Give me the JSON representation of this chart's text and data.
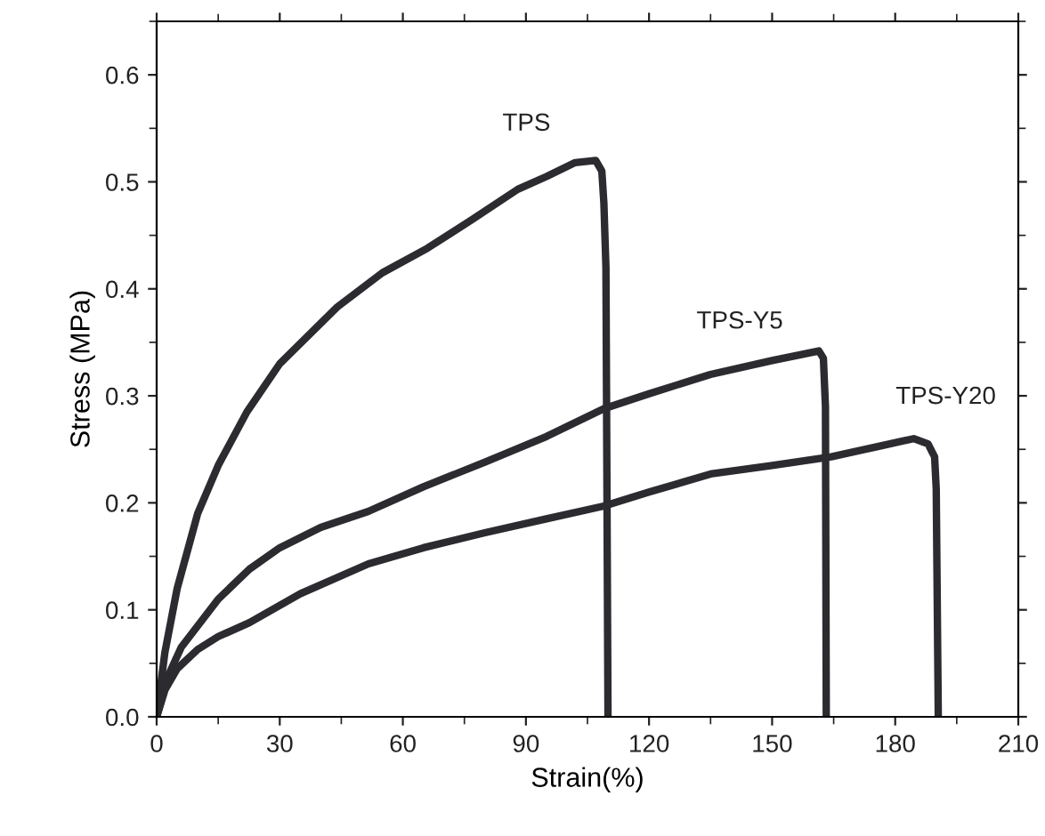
{
  "chart_data": {
    "type": "line",
    "xlabel": "Strain(%)",
    "ylabel": "Stress (MPa)",
    "xlim": [
      0,
      210
    ],
    "xticks": [
      0,
      30,
      60,
      90,
      120,
      150,
      180,
      210
    ],
    "ylim": [
      0,
      0.65
    ],
    "yticks": [
      {
        "value": 0,
        "label": "0.0"
      },
      0.1,
      0.2,
      0.3,
      0.4,
      0.5,
      0.6
    ],
    "grid": false,
    "marker": "none",
    "line_style": "solid",
    "series": [
      {
        "name": "TPS",
        "color": "#2b2b30",
        "x": [
          0,
          2,
          5,
          10,
          15,
          22,
          30,
          44,
          55,
          66,
          77,
          88,
          95,
          102,
          107,
          108.5,
          109,
          109.5,
          110
        ],
        "values": [
          0,
          0.06,
          0.12,
          0.19,
          0.235,
          0.285,
          0.33,
          0.383,
          0.415,
          0.438,
          0.465,
          0.493,
          0.505,
          0.518,
          0.52,
          0.51,
          0.48,
          0.42,
          0
        ]
      },
      {
        "name": "TPS-Y5",
        "color": "#2b2b30",
        "x": [
          0,
          3,
          6,
          10,
          15,
          22.6,
          30,
          40,
          51.6,
          65,
          80,
          95,
          109,
          120,
          135,
          150,
          161.4,
          162.5,
          163,
          163.2
        ],
        "values": [
          0,
          0.04,
          0.065,
          0.085,
          0.11,
          0.138,
          0.158,
          0.177,
          0.192,
          0.215,
          0.238,
          0.262,
          0.288,
          0.302,
          0.32,
          0.333,
          0.342,
          0.335,
          0.29,
          0
        ]
      },
      {
        "name": "TPS-Y20",
        "color": "#2b2b30",
        "x": [
          0,
          2,
          5,
          10,
          15,
          22.6,
          35,
          51.6,
          65,
          80,
          95,
          109,
          120,
          135,
          150,
          164.4,
          175,
          184.5,
          188,
          189.6,
          190,
          190.5
        ],
        "values": [
          0,
          0.025,
          0.045,
          0.063,
          0.075,
          0.088,
          0.115,
          0.143,
          0.158,
          0.172,
          0.185,
          0.197,
          0.21,
          0.227,
          0.235,
          0.243,
          0.252,
          0.26,
          0.255,
          0.243,
          0.213,
          0
        ]
      }
    ]
  }
}
